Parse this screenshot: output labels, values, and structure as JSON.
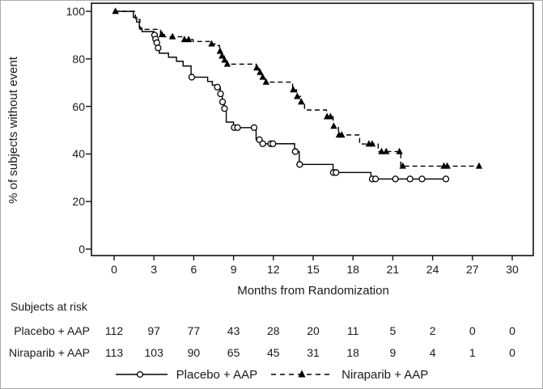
{
  "figure": {
    "risk_table": {
      "title": "Subjects at risk",
      "rows": [
        {
          "label": "Placebo + AAP",
          "counts": [
            112,
            97,
            77,
            43,
            28,
            20,
            11,
            5,
            2,
            0,
            0
          ]
        },
        {
          "label": "Niraparib + AAP",
          "counts": [
            113,
            103,
            90,
            65,
            45,
            31,
            18,
            9,
            4,
            1,
            0
          ]
        }
      ]
    },
    "legend": [
      {
        "label": "Placebo + AAP",
        "line": "solid",
        "marker": "open-circle"
      },
      {
        "label": "Niraparib + AAP",
        "line": "dashed",
        "marker": "filled-triangle"
      }
    ],
    "line_color": "#000000",
    "background_color": "#ffffff"
  },
  "chart_data": {
    "type": "line",
    "subtype": "kaplan-meier-step",
    "title": "",
    "xlabel": "Months from Randomization",
    "ylabel": "% of subjects without event",
    "xlim": [
      0,
      30
    ],
    "ylim": [
      0,
      100
    ],
    "x_ticks": [
      0,
      3,
      6,
      9,
      12,
      15,
      18,
      21,
      24,
      27,
      30
    ],
    "y_ticks": [
      0,
      20,
      40,
      60,
      80,
      100
    ],
    "grid": false,
    "legend_position": "bottom",
    "series": [
      {
        "name": "Placebo + AAP",
        "line": "solid",
        "marker": "circle",
        "color": "#000000",
        "start": [
          0,
          100
        ],
        "steps": [
          [
            1.45,
            97.5
          ],
          [
            1.7,
            95.5
          ],
          [
            1.9,
            93.0
          ],
          [
            2.1,
            91.5
          ],
          [
            3.0,
            90.0
          ],
          [
            3.1,
            88.3
          ],
          [
            3.2,
            86.8
          ],
          [
            3.3,
            84.6
          ],
          [
            3.4,
            82.4
          ],
          [
            4.1,
            80.7
          ],
          [
            4.7,
            79.0
          ],
          [
            5.2,
            77.0
          ],
          [
            5.8,
            72.3
          ],
          [
            7.05,
            70.5
          ],
          [
            7.4,
            69.0
          ],
          [
            7.75,
            68.1
          ],
          [
            8.0,
            65.3
          ],
          [
            8.15,
            61.9
          ],
          [
            8.3,
            59.1
          ],
          [
            8.45,
            53.4
          ],
          [
            9.0,
            51.1
          ],
          [
            10.7,
            46.0
          ],
          [
            11.1,
            44.3
          ],
          [
            13.6,
            41.0
          ],
          [
            13.95,
            35.6
          ],
          [
            16.5,
            32.2
          ],
          [
            19.35,
            29.5
          ]
        ],
        "end_month": 25.2,
        "censor_marks": [
          [
            3.05,
            90.0
          ],
          [
            3.13,
            88.3
          ],
          [
            3.22,
            86.8
          ],
          [
            3.32,
            84.6
          ],
          [
            5.85,
            72.3
          ],
          [
            7.78,
            68.1
          ],
          [
            8.02,
            65.3
          ],
          [
            8.17,
            61.9
          ],
          [
            8.32,
            59.1
          ],
          [
            9.05,
            51.1
          ],
          [
            9.3,
            51.1
          ],
          [
            10.55,
            51.1
          ],
          [
            10.95,
            46.0
          ],
          [
            11.2,
            44.3
          ],
          [
            11.8,
            44.3
          ],
          [
            11.97,
            44.3
          ],
          [
            13.65,
            41.0
          ],
          [
            13.98,
            35.6
          ],
          [
            16.52,
            32.2
          ],
          [
            16.72,
            32.2
          ],
          [
            19.45,
            29.5
          ],
          [
            19.7,
            29.5
          ],
          [
            21.2,
            29.5
          ],
          [
            22.3,
            29.5
          ],
          [
            23.2,
            29.5
          ],
          [
            25.0,
            29.5
          ]
        ]
      },
      {
        "name": "Niraparib + AAP",
        "line": "dashed",
        "marker": "triangle",
        "color": "#000000",
        "start": [
          0,
          100
        ],
        "steps": [
          [
            1.6,
            96.5
          ],
          [
            1.95,
            92.4
          ],
          [
            3.5,
            90.2
          ],
          [
            3.8,
            89.3
          ],
          [
            5.2,
            88.1
          ],
          [
            5.95,
            87.3
          ],
          [
            7.3,
            86.3
          ],
          [
            7.6,
            85.6
          ],
          [
            7.95,
            83.2
          ],
          [
            8.1,
            81.2
          ],
          [
            8.3,
            79.5
          ],
          [
            8.5,
            77.8
          ],
          [
            10.7,
            76.2
          ],
          [
            10.95,
            74.3
          ],
          [
            11.15,
            72.3
          ],
          [
            11.4,
            70.2
          ],
          [
            13.45,
            67.0
          ],
          [
            13.75,
            64.2
          ],
          [
            14.05,
            61.9
          ],
          [
            14.35,
            58.5
          ],
          [
            16.0,
            55.7
          ],
          [
            16.5,
            51.7
          ],
          [
            16.9,
            48.0
          ],
          [
            18.5,
            44.2
          ],
          [
            19.9,
            41.0
          ],
          [
            21.6,
            34.9
          ]
        ],
        "end_month": 27.65,
        "censor_marks": [
          [
            0.1,
            100
          ],
          [
            3.6,
            90.2
          ],
          [
            4.4,
            89.3
          ],
          [
            5.3,
            88.1
          ],
          [
            5.62,
            88.1
          ],
          [
            7.35,
            86.3
          ],
          [
            7.98,
            83.2
          ],
          [
            8.13,
            81.2
          ],
          [
            8.33,
            79.5
          ],
          [
            8.53,
            77.8
          ],
          [
            10.75,
            76.2
          ],
          [
            11.0,
            74.3
          ],
          [
            11.2,
            72.3
          ],
          [
            11.45,
            70.2
          ],
          [
            13.5,
            67.0
          ],
          [
            13.8,
            64.2
          ],
          [
            14.1,
            61.9
          ],
          [
            16.05,
            55.7
          ],
          [
            16.3,
            55.7
          ],
          [
            16.55,
            51.7
          ],
          [
            16.95,
            48.0
          ],
          [
            17.15,
            48.0
          ],
          [
            19.2,
            44.2
          ],
          [
            19.45,
            44.2
          ],
          [
            20.15,
            41.0
          ],
          [
            20.5,
            41.0
          ],
          [
            21.5,
            41.0
          ],
          [
            21.75,
            34.9
          ],
          [
            24.85,
            34.9
          ],
          [
            25.1,
            34.9
          ],
          [
            27.5,
            34.9
          ]
        ]
      }
    ]
  }
}
